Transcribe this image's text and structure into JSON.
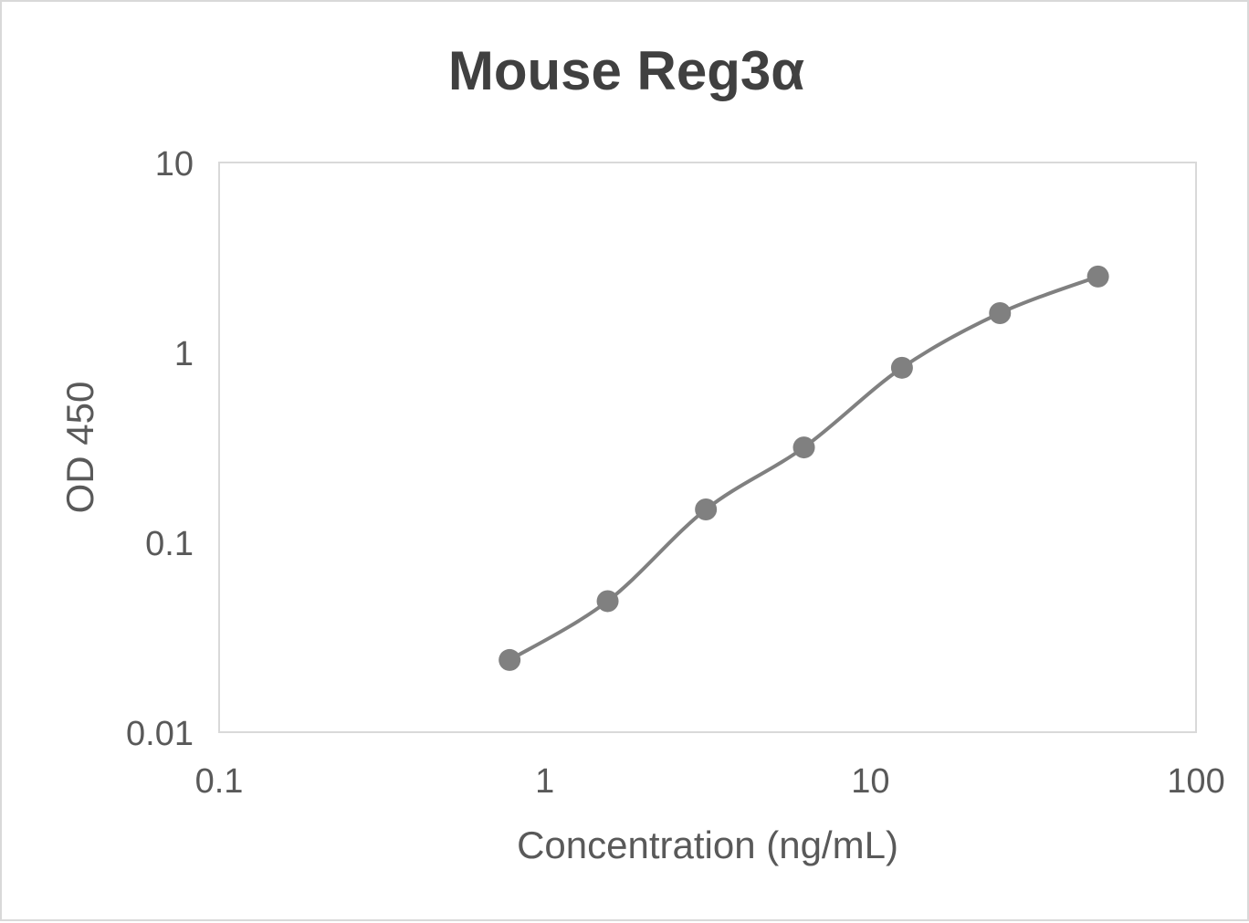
{
  "chart_data": {
    "type": "line",
    "title": "Mouse Reg3α",
    "xlabel": "Concentration (ng/mL)",
    "ylabel": "OD 450",
    "x_scale": "log",
    "y_scale": "log",
    "xlim": [
      0.1,
      100
    ],
    "ylim": [
      0.01,
      10
    ],
    "x_ticks": [
      "0.1",
      "1",
      "10",
      "100"
    ],
    "y_ticks": [
      "0.01",
      "0.1",
      "1",
      "10"
    ],
    "grid": false,
    "legend": "none",
    "smooth": true,
    "series": [
      {
        "color": "#808080",
        "x": [
          0.78,
          1.56,
          3.125,
          6.25,
          12.5,
          25,
          50
        ],
        "y": [
          0.024,
          0.049,
          0.149,
          0.316,
          0.83,
          1.61,
          2.51
        ]
      }
    ]
  }
}
